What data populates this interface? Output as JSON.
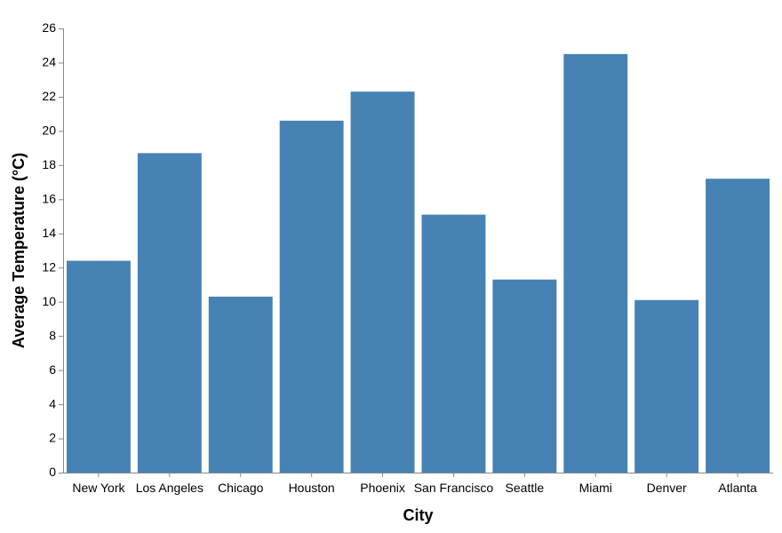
{
  "chart_data": {
    "type": "bar",
    "categories": [
      "New York",
      "Los Angeles",
      "Chicago",
      "Houston",
      "Phoenix",
      "San Francisco",
      "Seattle",
      "Miami",
      "Denver",
      "Atlanta"
    ],
    "values": [
      12.4,
      18.7,
      10.3,
      20.6,
      22.3,
      15.1,
      11.3,
      24.5,
      10.1,
      17.2
    ],
    "title": "",
    "xlabel": "City",
    "ylabel": "Average Temperature (°C)",
    "ylim": [
      0,
      26
    ],
    "yticks": [
      0,
      2,
      4,
      6,
      8,
      10,
      12,
      14,
      16,
      18,
      20,
      22,
      24,
      26
    ],
    "bar_color": "#4682b4",
    "axis_color": "#888888",
    "grid": false,
    "legend": "none"
  }
}
